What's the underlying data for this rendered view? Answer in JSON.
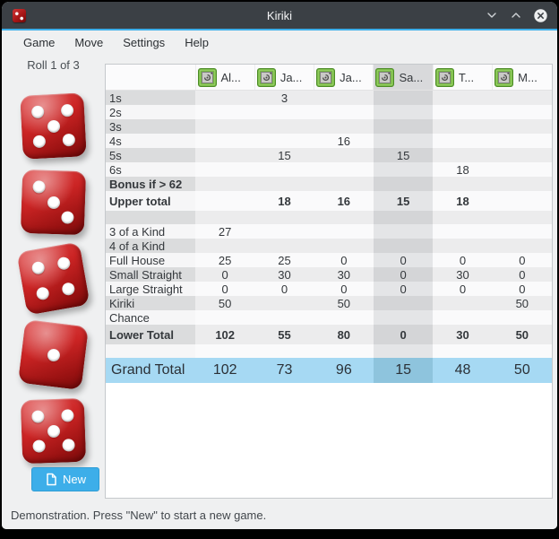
{
  "window": {
    "title": "Kiriki"
  },
  "icons": {
    "app": "red-die-icon",
    "minimize": "chevron-down-icon",
    "maximize": "chevron-up-icon",
    "close": "circle-x-icon",
    "new_button": "document-new-icon",
    "player": "cpu-chip-icon"
  },
  "menu": {
    "items": [
      "Game",
      "Move",
      "Settings",
      "Help"
    ]
  },
  "left_panel": {
    "roll_label": "Roll 1 of 3",
    "dice_values": [
      5,
      3,
      4,
      1,
      5
    ],
    "new_button_label": "New"
  },
  "score_table": {
    "players": [
      "Al...",
      "Ja...",
      "Ja...",
      "Sa...",
      "T...",
      "M..."
    ],
    "highlighted_column": 3,
    "rows": [
      {
        "label": "1s",
        "style": "normal",
        "values": [
          "",
          "3",
          "",
          "",
          "",
          ""
        ]
      },
      {
        "label": "2s",
        "style": "normal",
        "values": [
          "",
          "",
          "",
          "",
          "",
          ""
        ]
      },
      {
        "label": "3s",
        "style": "normal",
        "values": [
          "",
          "",
          "",
          "",
          "",
          ""
        ]
      },
      {
        "label": "4s",
        "style": "normal",
        "values": [
          "",
          "",
          "16",
          "",
          "",
          ""
        ]
      },
      {
        "label": "5s",
        "style": "normal",
        "values": [
          "",
          "15",
          "",
          "15",
          "",
          ""
        ]
      },
      {
        "label": "6s",
        "style": "normal",
        "values": [
          "",
          "",
          "",
          "",
          "18",
          ""
        ]
      },
      {
        "label": "Bonus if > 62",
        "style": "label-bold",
        "values": [
          "",
          "",
          "",
          "",
          "",
          ""
        ]
      },
      {
        "label": "Upper total",
        "style": "sum",
        "values": [
          "",
          "18",
          "16",
          "15",
          "18",
          ""
        ]
      },
      {
        "label": "",
        "style": "blank",
        "values": [
          "",
          "",
          "",
          "",
          "",
          ""
        ]
      },
      {
        "label": "3 of a Kind",
        "style": "normal",
        "values": [
          "27",
          "",
          "",
          "",
          "",
          ""
        ]
      },
      {
        "label": "4 of a Kind",
        "style": "normal",
        "values": [
          "",
          "",
          "",
          "",
          "",
          ""
        ]
      },
      {
        "label": "Full House",
        "style": "normal",
        "values": [
          "25",
          "25",
          "0",
          "0",
          "0",
          "0"
        ]
      },
      {
        "label": "Small Straight",
        "style": "normal",
        "values": [
          "0",
          "30",
          "30",
          "0",
          "30",
          "0"
        ]
      },
      {
        "label": "Large Straight",
        "style": "normal",
        "values": [
          "0",
          "0",
          "0",
          "0",
          "0",
          "0"
        ]
      },
      {
        "label": "Kiriki",
        "style": "normal",
        "values": [
          "50",
          "",
          "50",
          "",
          "",
          "50"
        ]
      },
      {
        "label": "Chance",
        "style": "normal",
        "values": [
          "",
          "",
          "",
          "",
          "",
          ""
        ]
      },
      {
        "label": "Lower Total",
        "style": "sum",
        "values": [
          "102",
          "55",
          "80",
          "0",
          "30",
          "50"
        ]
      },
      {
        "label": "",
        "style": "blank",
        "values": [
          "",
          "",
          "",
          "",
          "",
          ""
        ]
      }
    ],
    "grand_total": {
      "label": "Grand Total",
      "values": [
        "102",
        "73",
        "96",
        "15",
        "48",
        "50"
      ]
    }
  },
  "status_bar": {
    "text": "Demonstration. Press \"New\" to start a new game."
  },
  "colors": {
    "accent": "#3daee9",
    "titlebar": "#3b4045",
    "grand_total_bg": "#a6d9f3",
    "grand_total_highlight": "#8ec4dd",
    "die_red": "#cb2424",
    "new_button": "#3daee9",
    "player_icon_green": "#74b544"
  }
}
